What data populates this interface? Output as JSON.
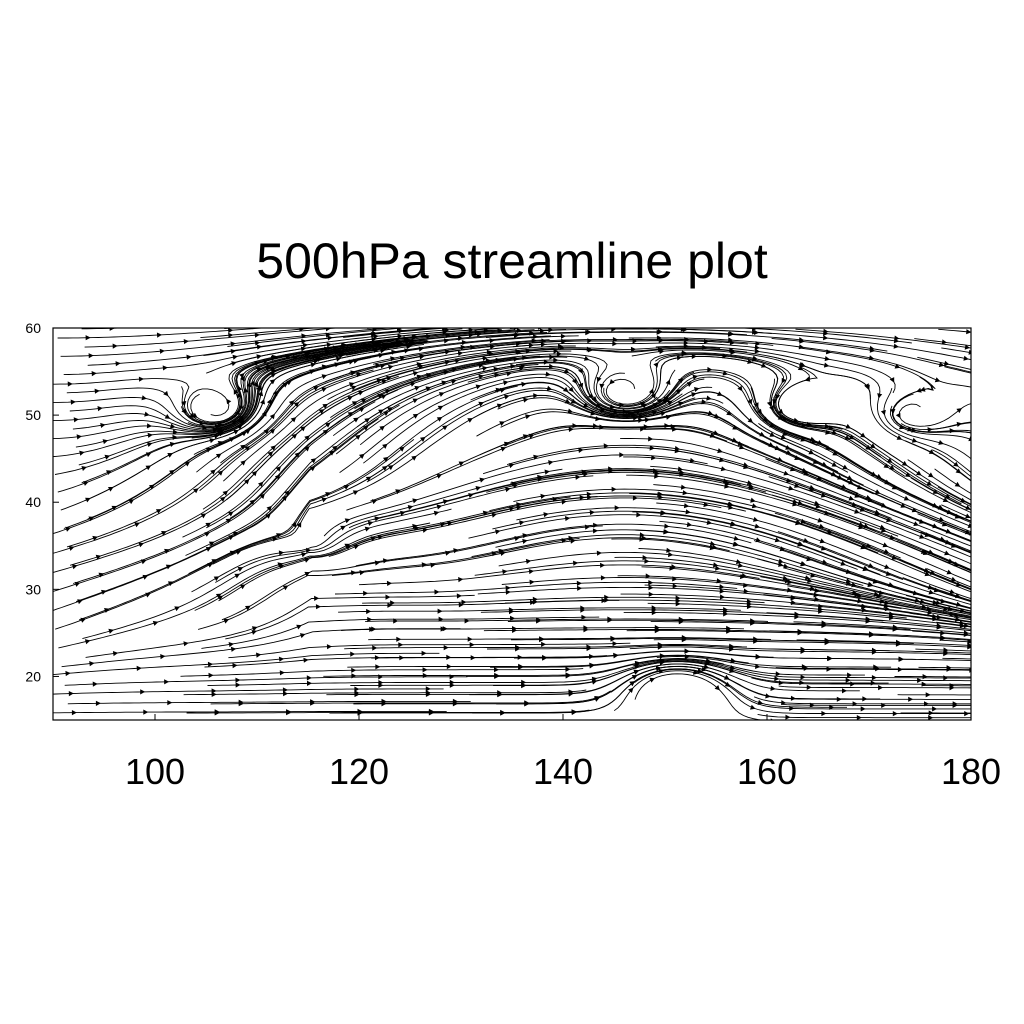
{
  "chart_data": {
    "type": "streamline",
    "title": "500hPa streamline plot",
    "xlabel": "",
    "ylabel": "",
    "xlim": [
      90,
      180
    ],
    "ylim": [
      15,
      60
    ],
    "xticks": [
      100,
      120,
      140,
      160,
      180
    ],
    "yticks": [
      20,
      30,
      40,
      50,
      60
    ],
    "features": [
      {
        "kind": "cyclonic-vortex",
        "lon": 106,
        "lat": 50.5
      },
      {
        "kind": "cyclonic-vortex",
        "lon": 146,
        "lat": 52.5
      },
      {
        "kind": "cyclonic-vortex",
        "lon": 163,
        "lat": 51
      },
      {
        "kind": "cyclonic-vortex",
        "lon": 174,
        "lat": 50
      },
      {
        "kind": "anticyclonic-vortex",
        "lon": 151,
        "lat": 18
      },
      {
        "kind": "trough",
        "lon": 115,
        "lat": 35
      },
      {
        "kind": "jet-axis",
        "lat_range": [
          30,
          44
        ]
      }
    ],
    "grid": false,
    "color": "#000000"
  }
}
